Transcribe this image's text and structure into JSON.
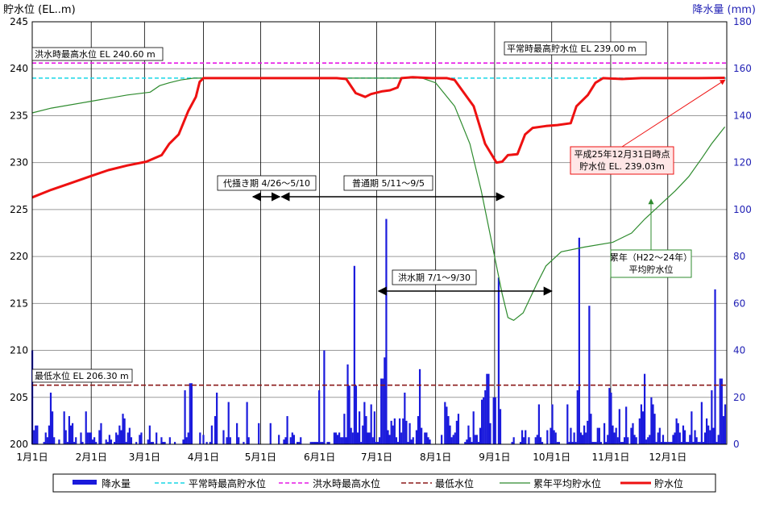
{
  "chart_data": {
    "type": "bar+line",
    "y_left_label": "貯水位 (EL..m)",
    "y_right_label": "降水量 (mm)",
    "ylim_left": [
      200,
      245
    ],
    "ylim_right": [
      0,
      180
    ],
    "y_left_ticks": [
      "200",
      "205",
      "210",
      "215",
      "220",
      "225",
      "230",
      "235",
      "240",
      "245"
    ],
    "y_right_ticks": [
      "0",
      "20",
      "40",
      "60",
      "80",
      "100",
      "120",
      "140",
      "160",
      "180"
    ],
    "x_ticks": [
      "1月1日",
      "2月1日",
      "3月1日",
      "4月1日",
      "5月1日",
      "6月1日",
      "7月1日",
      "8月1日",
      "9月1日",
      "10月1日",
      "11月1日",
      "12月1日"
    ],
    "legend": [
      "降水量",
      "平常時最高貯水位",
      "洪水時最高水位",
      "最低水位",
      "累年平均貯水位",
      "貯水位"
    ],
    "legend_position": "bottom",
    "colors": {
      "rain": "#1a1adc",
      "normal_max": "#19d6e6",
      "flood_max": "#e619e6",
      "min": "#8b1a1a",
      "avg": "#2e8b2e",
      "level": "#ee1111"
    },
    "reference_lines": {
      "flood_max": {
        "value": 240.6,
        "label": "洪水時最高水位 EL 240.60 m"
      },
      "normal_max": {
        "value": 239.0,
        "label": "平常時最高貯水位 EL 239.00 m"
      },
      "min": {
        "value": 206.3,
        "label": "最低水位 EL 206.30 m"
      }
    },
    "periods": [
      {
        "label": "代掻き期 4/26〜5/10",
        "start_day": 116,
        "end_day": 130
      },
      {
        "label": "普通期 5/11〜9/5",
        "start_day": 131,
        "end_day": 248
      },
      {
        "label": "洪水期 7/1〜9/30",
        "start_day": 182,
        "end_day": 273
      }
    ],
    "annotations": {
      "final_level": [
        "平成25年12月31日時点",
        "貯水位 EL. 239.03m"
      ],
      "avg_label": [
        "累年（H22〜24年）",
        "平均貯水位"
      ]
    },
    "level_series": [
      [
        0,
        226.3
      ],
      [
        10,
        227.1
      ],
      [
        20,
        227.8
      ],
      [
        30,
        228.5
      ],
      [
        40,
        229.2
      ],
      [
        50,
        229.7
      ],
      [
        60,
        230.1
      ],
      [
        68,
        230.8
      ],
      [
        72,
        232.0
      ],
      [
        77,
        233.0
      ],
      [
        82,
        235.5
      ],
      [
        86,
        237.0
      ],
      [
        88,
        238.6
      ],
      [
        90,
        239.0
      ],
      [
        100,
        239.0
      ],
      [
        110,
        239.0
      ],
      [
        120,
        239.0
      ],
      [
        130,
        239.0
      ],
      [
        140,
        239.0
      ],
      [
        150,
        239.0
      ],
      [
        160,
        239.0
      ],
      [
        165,
        238.9
      ],
      [
        170,
        237.4
      ],
      [
        175,
        237.0
      ],
      [
        178,
        237.3
      ],
      [
        184,
        237.6
      ],
      [
        188,
        237.7
      ],
      [
        192,
        238.0
      ],
      [
        194,
        239.0
      ],
      [
        200,
        239.1
      ],
      [
        210,
        239.0
      ],
      [
        218,
        239.0
      ],
      [
        222,
        238.8
      ],
      [
        232,
        236.0
      ],
      [
        238,
        232.0
      ],
      [
        244,
        230.0
      ],
      [
        247,
        230.1
      ],
      [
        250,
        230.8
      ],
      [
        255,
        230.9
      ],
      [
        259,
        233.0
      ],
      [
        263,
        233.7
      ],
      [
        270,
        233.9
      ],
      [
        276,
        234.0
      ],
      [
        283,
        234.2
      ],
      [
        286,
        236.0
      ],
      [
        292,
        237.2
      ],
      [
        296,
        238.5
      ],
      [
        300,
        239.0
      ],
      [
        310,
        238.9
      ],
      [
        320,
        239.0
      ],
      [
        330,
        239.0
      ],
      [
        340,
        239.0
      ],
      [
        350,
        239.0
      ],
      [
        364,
        239.03
      ]
    ],
    "avg_series": [
      [
        0,
        235.3
      ],
      [
        10,
        235.8
      ],
      [
        30,
        236.5
      ],
      [
        50,
        237.2
      ],
      [
        62,
        237.5
      ],
      [
        67,
        238.2
      ],
      [
        72,
        238.5
      ],
      [
        78,
        238.8
      ],
      [
        85,
        239.0
      ],
      [
        100,
        239.0
      ],
      [
        130,
        239.0
      ],
      [
        160,
        239.0
      ],
      [
        190,
        239.0
      ],
      [
        205,
        239.0
      ],
      [
        212,
        238.5
      ],
      [
        222,
        236.0
      ],
      [
        230,
        232.0
      ],
      [
        236,
        227.0
      ],
      [
        242,
        221.0
      ],
      [
        247,
        216.0
      ],
      [
        250,
        213.5
      ],
      [
        253,
        213.2
      ],
      [
        258,
        214.0
      ],
      [
        265,
        217.0
      ],
      [
        270,
        219.0
      ],
      [
        278,
        220.5
      ],
      [
        290,
        221.0
      ],
      [
        305,
        221.5
      ],
      [
        315,
        222.5
      ],
      [
        322,
        224.0
      ],
      [
        330,
        225.5
      ],
      [
        338,
        227.0
      ],
      [
        345,
        228.5
      ],
      [
        352,
        230.5
      ],
      [
        357,
        232.0
      ],
      [
        364,
        233.8
      ]
    ],
    "rain": [
      [
        0,
        40
      ],
      [
        1,
        6
      ],
      [
        2,
        8
      ],
      [
        3,
        8
      ],
      [
        7,
        1
      ],
      [
        8,
        5
      ],
      [
        9,
        3
      ],
      [
        10,
        8
      ],
      [
        11,
        22
      ],
      [
        12,
        14
      ],
      [
        13,
        3
      ],
      [
        16,
        2
      ],
      [
        19,
        14
      ],
      [
        20,
        6
      ],
      [
        21,
        1
      ],
      [
        22,
        12
      ],
      [
        23,
        8
      ],
      [
        24,
        9
      ],
      [
        25,
        1
      ],
      [
        26,
        3
      ],
      [
        29,
        5
      ],
      [
        30,
        1
      ],
      [
        32,
        14
      ],
      [
        33,
        5
      ],
      [
        34,
        5
      ],
      [
        35,
        5
      ],
      [
        36,
        2
      ],
      [
        37,
        3
      ],
      [
        38,
        1
      ],
      [
        40,
        6
      ],
      [
        41,
        9
      ],
      [
        44,
        2
      ],
      [
        45,
        1
      ],
      [
        46,
        4
      ],
      [
        47,
        2
      ],
      [
        49,
        1
      ],
      [
        50,
        5
      ],
      [
        51,
        4
      ],
      [
        52,
        8
      ],
      [
        53,
        6
      ],
      [
        54,
        13
      ],
      [
        55,
        11
      ],
      [
        56,
        1
      ],
      [
        57,
        5
      ],
      [
        58,
        7
      ],
      [
        59,
        3
      ],
      [
        62,
        1
      ],
      [
        64,
        4
      ],
      [
        65,
        5
      ],
      [
        69,
        2
      ],
      [
        70,
        8
      ],
      [
        71,
        1
      ],
      [
        72,
        1
      ],
      [
        74,
        5
      ],
      [
        77,
        3
      ],
      [
        78,
        1
      ],
      [
        79,
        1
      ],
      [
        82,
        3
      ],
      [
        85,
        1
      ],
      [
        90,
        2
      ],
      [
        91,
        23
      ],
      [
        92,
        3
      ],
      [
        93,
        5
      ],
      [
        94,
        26
      ],
      [
        95,
        26
      ],
      [
        100,
        5
      ],
      [
        102,
        4
      ],
      [
        104,
        1
      ],
      [
        106,
        1
      ],
      [
        107,
        8
      ],
      [
        109,
        12
      ],
      [
        110,
        22
      ],
      [
        114,
        6
      ],
      [
        116,
        3
      ],
      [
        117,
        18
      ],
      [
        118,
        3
      ],
      [
        122,
        9
      ],
      [
        123,
        3
      ],
      [
        126,
        1
      ],
      [
        128,
        18
      ],
      [
        129,
        3
      ],
      [
        135,
        9
      ],
      [
        142,
        9
      ],
      [
        147,
        4
      ],
      [
        150,
        2
      ],
      [
        151,
        3
      ],
      [
        152,
        12
      ],
      [
        154,
        3
      ],
      [
        155,
        5
      ],
      [
        156,
        4
      ],
      [
        158,
        1
      ],
      [
        159,
        1
      ],
      [
        160,
        3
      ],
      [
        166,
        1
      ],
      [
        167,
        1
      ],
      [
        168,
        1
      ],
      [
        169,
        1
      ],
      [
        170,
        1
      ],
      [
        171,
        23
      ],
      [
        172,
        1
      ],
      [
        173,
        1
      ],
      [
        174,
        40
      ],
      [
        176,
        1
      ],
      [
        177,
        1
      ],
      [
        180,
        5
      ],
      [
        181,
        5
      ],
      [
        182,
        4
      ],
      [
        183,
        5
      ],
      [
        184,
        3
      ],
      [
        185,
        3
      ],
      [
        186,
        13
      ],
      [
        187,
        3
      ],
      [
        188,
        34
      ],
      [
        189,
        25
      ],
      [
        190,
        7
      ],
      [
        191,
        5
      ],
      [
        192,
        76
      ],
      [
        193,
        25
      ],
      [
        194,
        5
      ],
      [
        195,
        14
      ],
      [
        196,
        1
      ],
      [
        197,
        8
      ],
      [
        198,
        18
      ],
      [
        199,
        12
      ],
      [
        200,
        5
      ],
      [
        201,
        5
      ],
      [
        202,
        17
      ],
      [
        203,
        3
      ],
      [
        204,
        14
      ],
      [
        205,
        1
      ],
      [
        206,
        1
      ],
      [
        207,
        3
      ],
      [
        208,
        28
      ],
      [
        209,
        28
      ],
      [
        210,
        37
      ],
      [
        211,
        96
      ],
      [
        212,
        6
      ],
      [
        213,
        4
      ],
      [
        214,
        10
      ],
      [
        215,
        8
      ],
      [
        216,
        11
      ],
      [
        217,
        3
      ],
      [
        218,
        1
      ],
      [
        219,
        11
      ],
      [
        220,
        5
      ],
      [
        221,
        11
      ],
      [
        222,
        22
      ],
      [
        223,
        10
      ],
      [
        224,
        1
      ],
      [
        225,
        9
      ],
      [
        226,
        2
      ],
      [
        227,
        3
      ],
      [
        229,
        6
      ],
      [
        230,
        12
      ],
      [
        231,
        32
      ],
      [
        232,
        7
      ],
      [
        234,
        5
      ],
      [
        235,
        5
      ],
      [
        236,
        3
      ],
      [
        237,
        2
      ],
      [
        244,
        4
      ],
      [
        246,
        18
      ],
      [
        247,
        16
      ],
      [
        248,
        12
      ],
      [
        249,
        8
      ],
      [
        250,
        3
      ],
      [
        251,
        4
      ],
      [
        252,
        5
      ],
      [
        253,
        10
      ],
      [
        254,
        13
      ],
      [
        258,
        1
      ],
      [
        259,
        2
      ],
      [
        260,
        8
      ],
      [
        261,
        3
      ],
      [
        262,
        1
      ],
      [
        263,
        14
      ],
      [
        264,
        4
      ],
      [
        265,
        4
      ],
      [
        266,
        1
      ],
      [
        267,
        7
      ],
      [
        268,
        19
      ],
      [
        269,
        20
      ],
      [
        270,
        23
      ],
      [
        271,
        30
      ],
      [
        272,
        30
      ],
      [
        273,
        9
      ],
      [
        275,
        20
      ],
      [
        276,
        20
      ],
      [
        278,
        71
      ],
      [
        279,
        15
      ],
      [
        286,
        1
      ],
      [
        287,
        3
      ],
      [
        291,
        1
      ],
      [
        292,
        6
      ],
      [
        293,
        3
      ],
      [
        294,
        6
      ],
      [
        296,
        3
      ],
      [
        300,
        3
      ],
      [
        301,
        4
      ],
      [
        302,
        17
      ],
      [
        303,
        3
      ],
      [
        304,
        1
      ],
      [
        307,
        6
      ],
      [
        309,
        7
      ],
      [
        310,
        17
      ],
      [
        311,
        6
      ],
      [
        312,
        5
      ],
      [
        313,
        1
      ],
      [
        314,
        1
      ],
      [
        319,
        17
      ],
      [
        320,
        1
      ],
      [
        321,
        7
      ],
      [
        322,
        1
      ],
      [
        323,
        5
      ],
      [
        324,
        1
      ],
      [
        325,
        23
      ],
      [
        326,
        88
      ],
      [
        327,
        5
      ],
      [
        328,
        4
      ],
      [
        329,
        8
      ],
      [
        330,
        5
      ],
      [
        331,
        10
      ],
      [
        332,
        59
      ],
      [
        333,
        13
      ],
      [
        334,
        1
      ],
      [
        335,
        1
      ],
      [
        336,
        1
      ],
      [
        337,
        7
      ],
      [
        338,
        7
      ],
      [
        339,
        1
      ],
      [
        341,
        9
      ],
      [
        342,
        1
      ],
      [
        343,
        4
      ],
      [
        344,
        24
      ],
      [
        345,
        22
      ],
      [
        346,
        8
      ],
      [
        347,
        5
      ],
      [
        348,
        7
      ],
      [
        349,
        3
      ],
      [
        350,
        15
      ],
      [
        351,
        1
      ],
      [
        352,
        1
      ],
      [
        353,
        3
      ],
      [
        354,
        16
      ],
      [
        355,
        3
      ],
      [
        357,
        7
      ],
      [
        358,
        9
      ],
      [
        359,
        4
      ],
      [
        360,
        3
      ],
      [
        362,
        11
      ],
      [
        363,
        17
      ],
      [
        364,
        14
      ],
      [
        365,
        30
      ],
      [
        366,
        2
      ],
      [
        367,
        3
      ],
      [
        368,
        4
      ],
      [
        369,
        20
      ],
      [
        370,
        17
      ],
      [
        371,
        13
      ],
      [
        372,
        1
      ],
      [
        373,
        5
      ],
      [
        374,
        7
      ],
      [
        375,
        1
      ],
      [
        376,
        4
      ],
      [
        377,
        1
      ],
      [
        378,
        1
      ],
      [
        379,
        1
      ],
      [
        380,
        1
      ],
      [
        381,
        1
      ],
      [
        382,
        4
      ],
      [
        383,
        5
      ],
      [
        384,
        11
      ],
      [
        385,
        9
      ],
      [
        386,
        5
      ],
      [
        387,
        1
      ],
      [
        388,
        8
      ],
      [
        389,
        6
      ],
      [
        390,
        1
      ],
      [
        391,
        1
      ],
      [
        392,
        4
      ],
      [
        393,
        14
      ],
      [
        394,
        1
      ],
      [
        395,
        6
      ],
      [
        396,
        3
      ],
      [
        397,
        1
      ],
      [
        398,
        1
      ],
      [
        399,
        18
      ],
      [
        400,
        1
      ],
      [
        401,
        5
      ],
      [
        402,
        11
      ],
      [
        403,
        8
      ],
      [
        404,
        6
      ],
      [
        405,
        23
      ],
      [
        406,
        7
      ],
      [
        407,
        66
      ],
      [
        408,
        1
      ],
      [
        409,
        4
      ],
      [
        410,
        28
      ],
      [
        411,
        28
      ],
      [
        412,
        12
      ],
      [
        413,
        17
      ]
    ]
  }
}
